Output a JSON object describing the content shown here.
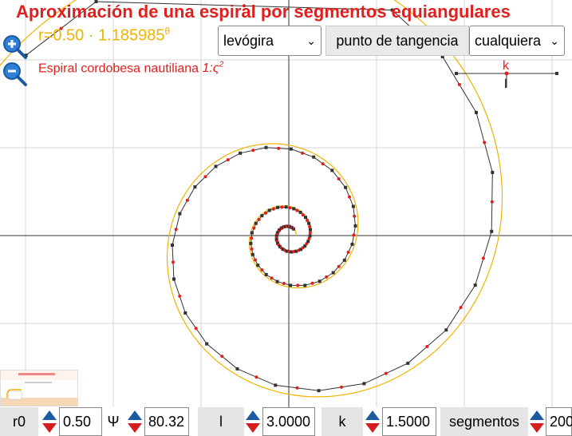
{
  "header": {
    "title": "Aproximación de una espiral por segmentos equiangulares",
    "formula_base": "r=0.50 · 1.185985",
    "formula_exp": "θ",
    "subtitle_text": "Espiral cordobesa nautiliana ",
    "subtitle_ratio": "1:ς",
    "subtitle_exp": "2"
  },
  "controls": {
    "direction_select": "levógira",
    "tangency_label": "punto de tangencia",
    "tangency_select": "cualquiera"
  },
  "slider": {
    "k_label": "k",
    "l_label": "l"
  },
  "bottom_bar": {
    "r0_label": "r0",
    "r0_value": "0.50",
    "psi_label": "Ψ",
    "psi_value": "80.32",
    "l_label": "l",
    "l_value": "3.0000",
    "k_label": "k",
    "k_value": "1.5000",
    "segments_label": "segmentos",
    "segments_value": "200"
  },
  "colors": {
    "title": "#e0201f",
    "formula": "#f0b400",
    "spiral": "#f0b400",
    "polyline": "#333333",
    "tangent_point": "#e0201f"
  },
  "icons": {
    "zoom_in": "zoom-in-icon",
    "zoom_out": "zoom-out-icon"
  }
}
